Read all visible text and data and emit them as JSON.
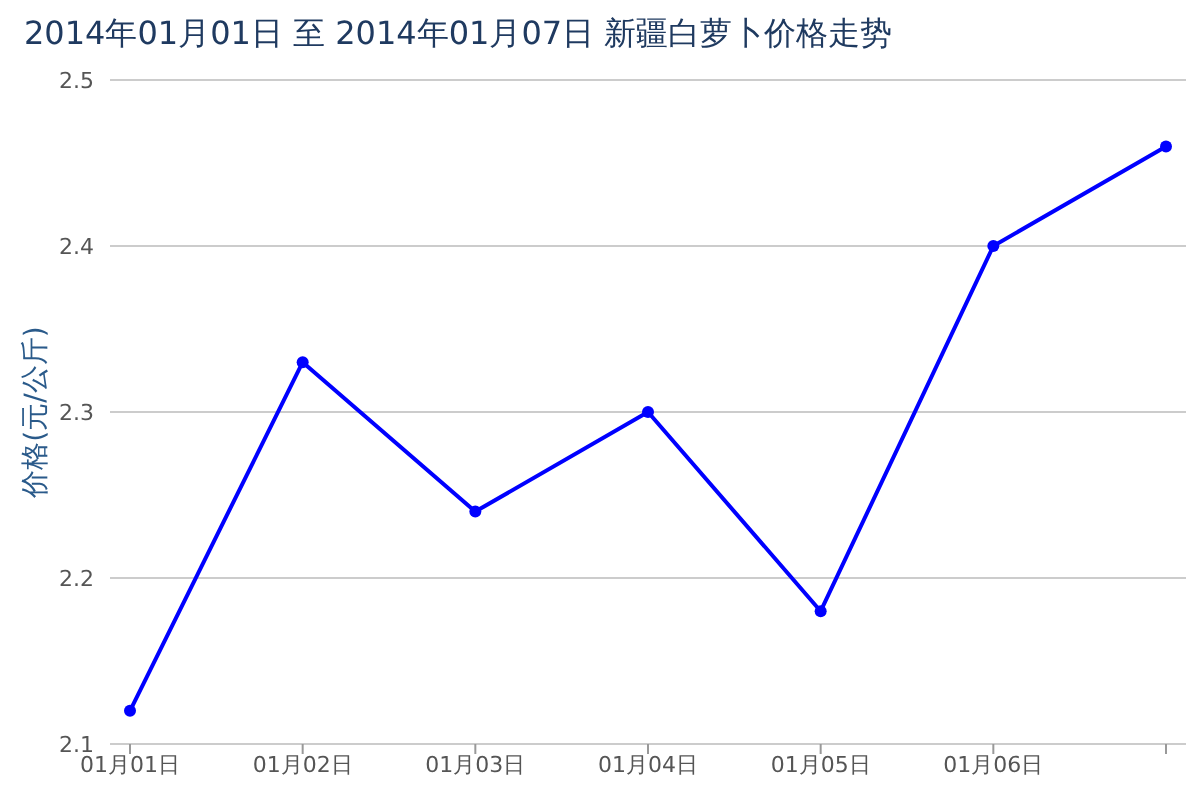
{
  "chart_data": {
    "type": "line",
    "title": "2014年01月01日 至 2014年01月07日 新疆白萝卜价格走势",
    "ylabel": "价格(元/公斤)",
    "categories": [
      "01月01日",
      "01月02日",
      "01月03日",
      "01月04日",
      "01月05日",
      "01月06日",
      null
    ],
    "values": [
      2.12,
      2.33,
      2.24,
      2.3,
      2.18,
      2.4,
      2.46
    ],
    "color": "#0000ff",
    "ylim": [
      2.1,
      2.5
    ],
    "yticks": [
      2.1,
      2.2,
      2.3,
      2.4,
      2.5
    ],
    "grid": "y",
    "marker": "circle"
  }
}
